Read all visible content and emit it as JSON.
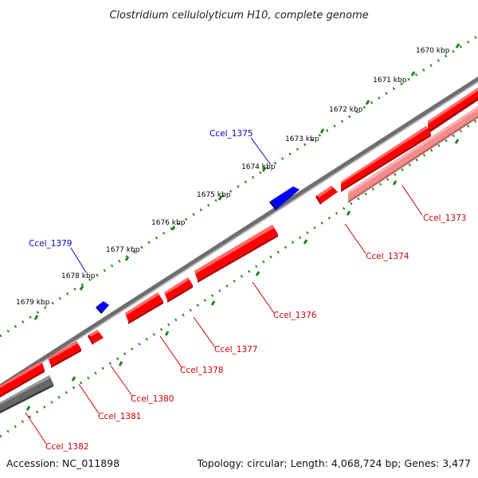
{
  "map": {
    "title": "Clostridium cellulolyticum H10, complete genome",
    "accession_text": "Accession: NC_011898",
    "summary_text": "Topology: circular; Length: 4,068,724 bp; Genes: 3,477",
    "colors": {
      "forward_gene": "#ff0000",
      "reverse_gene": "#0000ff",
      "gray_gene": "#666666",
      "light_gene": "#f08080",
      "backbone": "#7a7a7a",
      "tick": "#1a8a1a",
      "forward_label": "#cc0000",
      "reverse_label": "#0000cc"
    },
    "kbp_labels": [
      "1670 kbp",
      "1671 kbp",
      "1672 kbp",
      "1673 kbp",
      "1674 kbp",
      "1675 kbp",
      "1676 kbp",
      "1677 kbp",
      "1678 kbp",
      "1679 kbp"
    ],
    "forward_labels": [
      "Ccel_1373",
      "Ccel_1374",
      "Ccel_1376",
      "Ccel_1377",
      "Ccel_1378",
      "Ccel_1380",
      "Ccel_1381",
      "Ccel_1382"
    ],
    "reverse_labels": [
      "Ccel_1375",
      "Ccel_1379"
    ]
  }
}
